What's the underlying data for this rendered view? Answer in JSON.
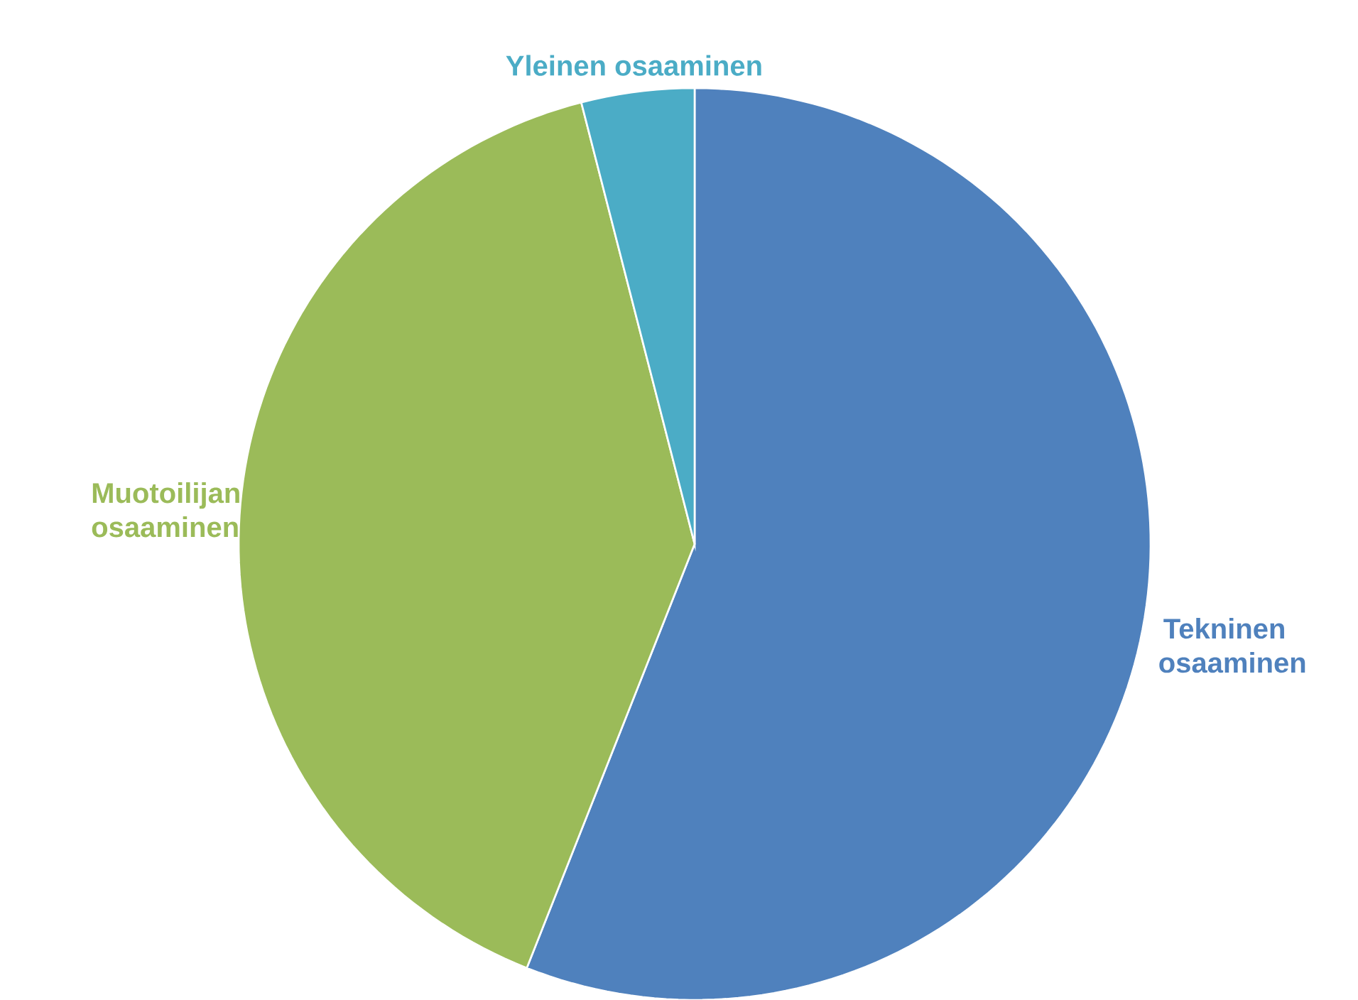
{
  "chart_data": {
    "type": "pie",
    "categories": [
      "Tekninen osaaminen",
      "Muotoilijan osaaminen",
      "Yleinen osaaminen"
    ],
    "values": [
      56,
      40,
      4
    ],
    "colors": [
      "#4f81bd",
      "#9bbb59",
      "#4bacc6"
    ]
  }
}
